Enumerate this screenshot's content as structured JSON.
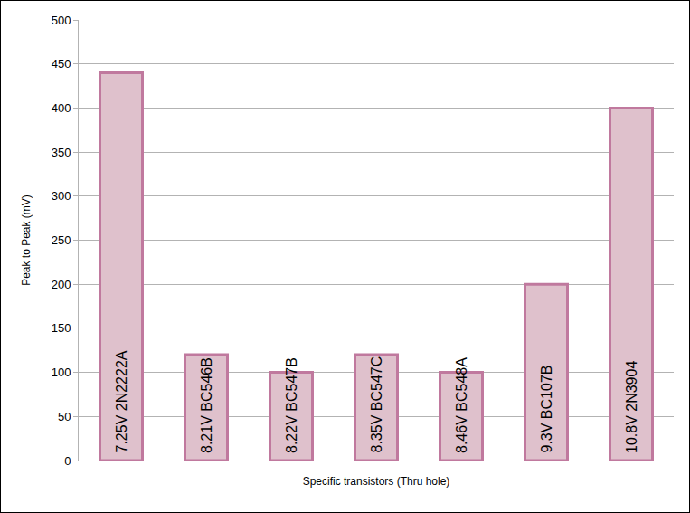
{
  "chart_data": {
    "type": "bar",
    "x_label": "Specific transistors (Thru hole)",
    "y_label": "Peak to Peak (mV)",
    "categories": [
      "7.25V 2N2222A",
      "8.21V BC546B",
      "8.22V BC547B",
      "8.35V BC547C",
      "8.46V BC548A",
      "9.3V BC107B",
      "10.8V 2N3904"
    ],
    "values": [
      440,
      120,
      100,
      120,
      100,
      200,
      400
    ],
    "color": "#dfc1cc",
    "ylim": [
      0,
      500
    ],
    "yticks": [
      0,
      50,
      100,
      150,
      200,
      250,
      300,
      350,
      400,
      450,
      500
    ],
    "grid": true,
    "tick_labels": "y"
  }
}
